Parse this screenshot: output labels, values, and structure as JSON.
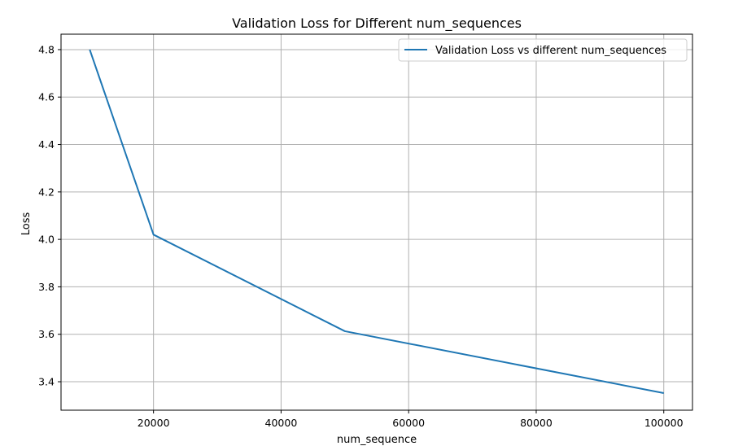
{
  "chart_data": {
    "type": "line",
    "title": "Validation Loss for Different num_sequences",
    "xlabel": "num_sequence",
    "ylabel": "Loss",
    "xlim": [
      5500,
      104500
    ],
    "ylim": [
      3.28,
      4.865
    ],
    "xticks": [
      20000,
      40000,
      60000,
      80000,
      100000
    ],
    "xtick_labels": [
      "20000",
      "40000",
      "60000",
      "80000",
      "100000"
    ],
    "yticks": [
      3.4,
      3.6,
      3.8,
      4.0,
      4.2,
      4.4,
      4.6,
      4.8
    ],
    "ytick_labels": [
      "3.4",
      "3.6",
      "3.8",
      "4.0",
      "4.2",
      "4.4",
      "4.6",
      "4.8"
    ],
    "grid": true,
    "legend_position": "top-right",
    "series": [
      {
        "name": "Validation Loss vs different num_sequences",
        "color": "#1f77b4",
        "x": [
          10000,
          20000,
          50000,
          100000
        ],
        "y": [
          4.8,
          4.02,
          3.613,
          3.352
        ]
      }
    ]
  }
}
